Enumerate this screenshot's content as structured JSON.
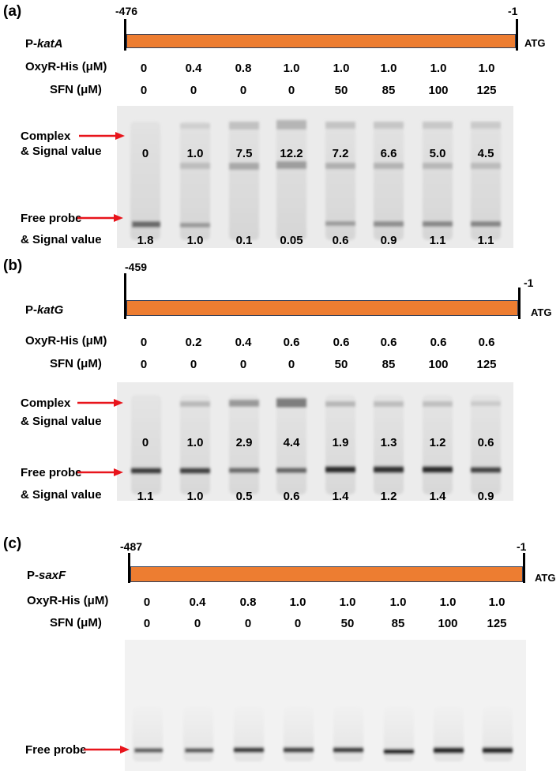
{
  "panels": [
    {
      "label": "(a)",
      "start_coord": "-476",
      "end_coord": "-1",
      "atg": "ATG",
      "probe_prefix": "P-",
      "probe_gene": "katA",
      "oxyr_label": "OxyR-His (μM)",
      "sfn_label": "SFN (μM)",
      "oxyr": [
        "0",
        "0.4",
        "0.8",
        "1.0",
        "1.0",
        "1.0",
        "1.0",
        "1.0"
      ],
      "sfn": [
        "0",
        "0",
        "0",
        "0",
        "50",
        "85",
        "100",
        "125"
      ],
      "complex_label_1": "Complex",
      "complex_label_2": "& Signal value",
      "complex_values": [
        "0",
        "1.0",
        "7.5",
        "12.2",
        "7.2",
        "6.6",
        "5.0",
        "4.5"
      ],
      "free_label_1": "Free probe",
      "free_label_2": "& Signal value",
      "free_values": [
        "1.8",
        "1.0",
        "0.1",
        "0.05",
        "0.6",
        "0.9",
        "1.1",
        "1.1"
      ]
    },
    {
      "label": "(b)",
      "start_coord": "-459",
      "end_coord": "-1",
      "atg": "ATG",
      "probe_prefix": "P-",
      "probe_gene": "katG",
      "oxyr_label": "OxyR-His (μM)",
      "sfn_label": "SFN (μM)",
      "oxyr": [
        "0",
        "0.2",
        "0.4",
        "0.6",
        "0.6",
        "0.6",
        "0.6",
        "0.6"
      ],
      "sfn": [
        "0",
        "0",
        "0",
        "0",
        "50",
        "85",
        "100",
        "125"
      ],
      "complex_label_1": "Complex",
      "complex_label_2": "& Signal value",
      "complex_values": [
        "0",
        "1.0",
        "2.9",
        "4.4",
        "1.9",
        "1.3",
        "1.2",
        "0.6"
      ],
      "free_label_1": "Free probe",
      "free_label_2": "& Signal value",
      "free_values": [
        "1.1",
        "1.0",
        "0.5",
        "0.6",
        "1.4",
        "1.2",
        "1.4",
        "0.9"
      ]
    },
    {
      "label": "(c)",
      "start_coord": "-487",
      "end_coord": "-1",
      "atg": "ATG",
      "probe_prefix": "P-",
      "probe_gene": "saxF",
      "oxyr_label": "OxyR-His (μM)",
      "sfn_label": "SFN (μM)",
      "oxyr": [
        "0",
        "0.4",
        "0.8",
        "1.0",
        "1.0",
        "1.0",
        "1.0",
        "1.0"
      ],
      "sfn": [
        "0",
        "0",
        "0",
        "0",
        "50",
        "85",
        "100",
        "125"
      ],
      "free_label_1": "Free probe"
    }
  ],
  "colors": {
    "probe_fill": "#ed7d31",
    "arrow": "#e8141b"
  }
}
